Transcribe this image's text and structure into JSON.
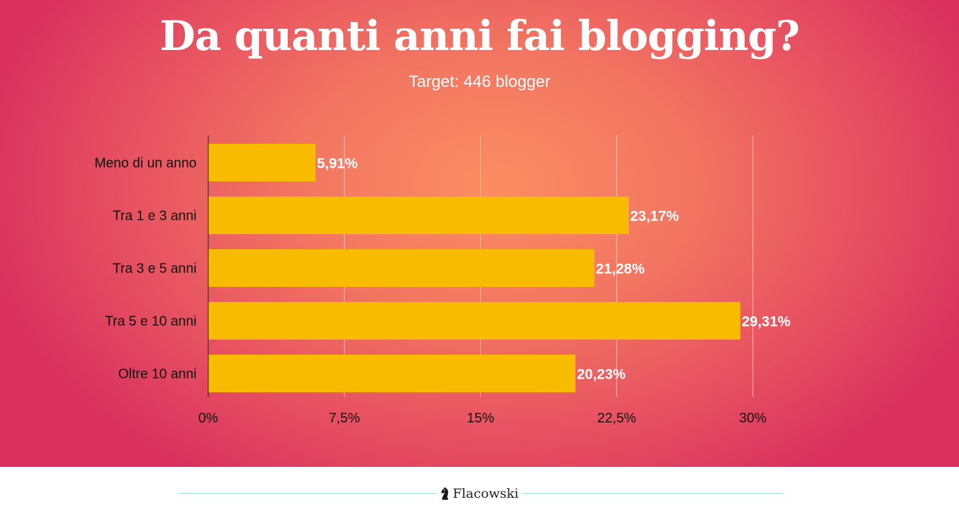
{
  "header": {
    "title": "Da quanti anni fai blogging?",
    "subtitle": "Target: 446 blogger"
  },
  "chart_data": {
    "type": "bar",
    "orientation": "horizontal",
    "categories": [
      "Meno di un anno",
      "Tra 1 e 3 anni",
      "Tra 3 e 5 anni",
      "Tra 5 e 10 anni",
      "Oltre 10 anni"
    ],
    "values": [
      5.91,
      23.17,
      21.28,
      29.31,
      20.23
    ],
    "value_labels": [
      "5,91%",
      "23,17%",
      "21,28%",
      "29,31%",
      "20,23%"
    ],
    "xlim": [
      0,
      30
    ],
    "x_ticks": [
      0,
      7.5,
      15,
      22.5,
      30
    ],
    "x_tick_labels": [
      "0%",
      "7,5%",
      "15%",
      "22,5%",
      "30%"
    ],
    "grid": true,
    "legend": "none",
    "bar_color": "#f8bb00"
  },
  "footer": {
    "brand": "Flacowski",
    "logo_icon": "chess-knight-icon"
  },
  "colors": {
    "background_center": "#fb8d62",
    "background_edge": "#d9305f",
    "bar": "#f8bb00",
    "divider": "#9ee1dc"
  }
}
